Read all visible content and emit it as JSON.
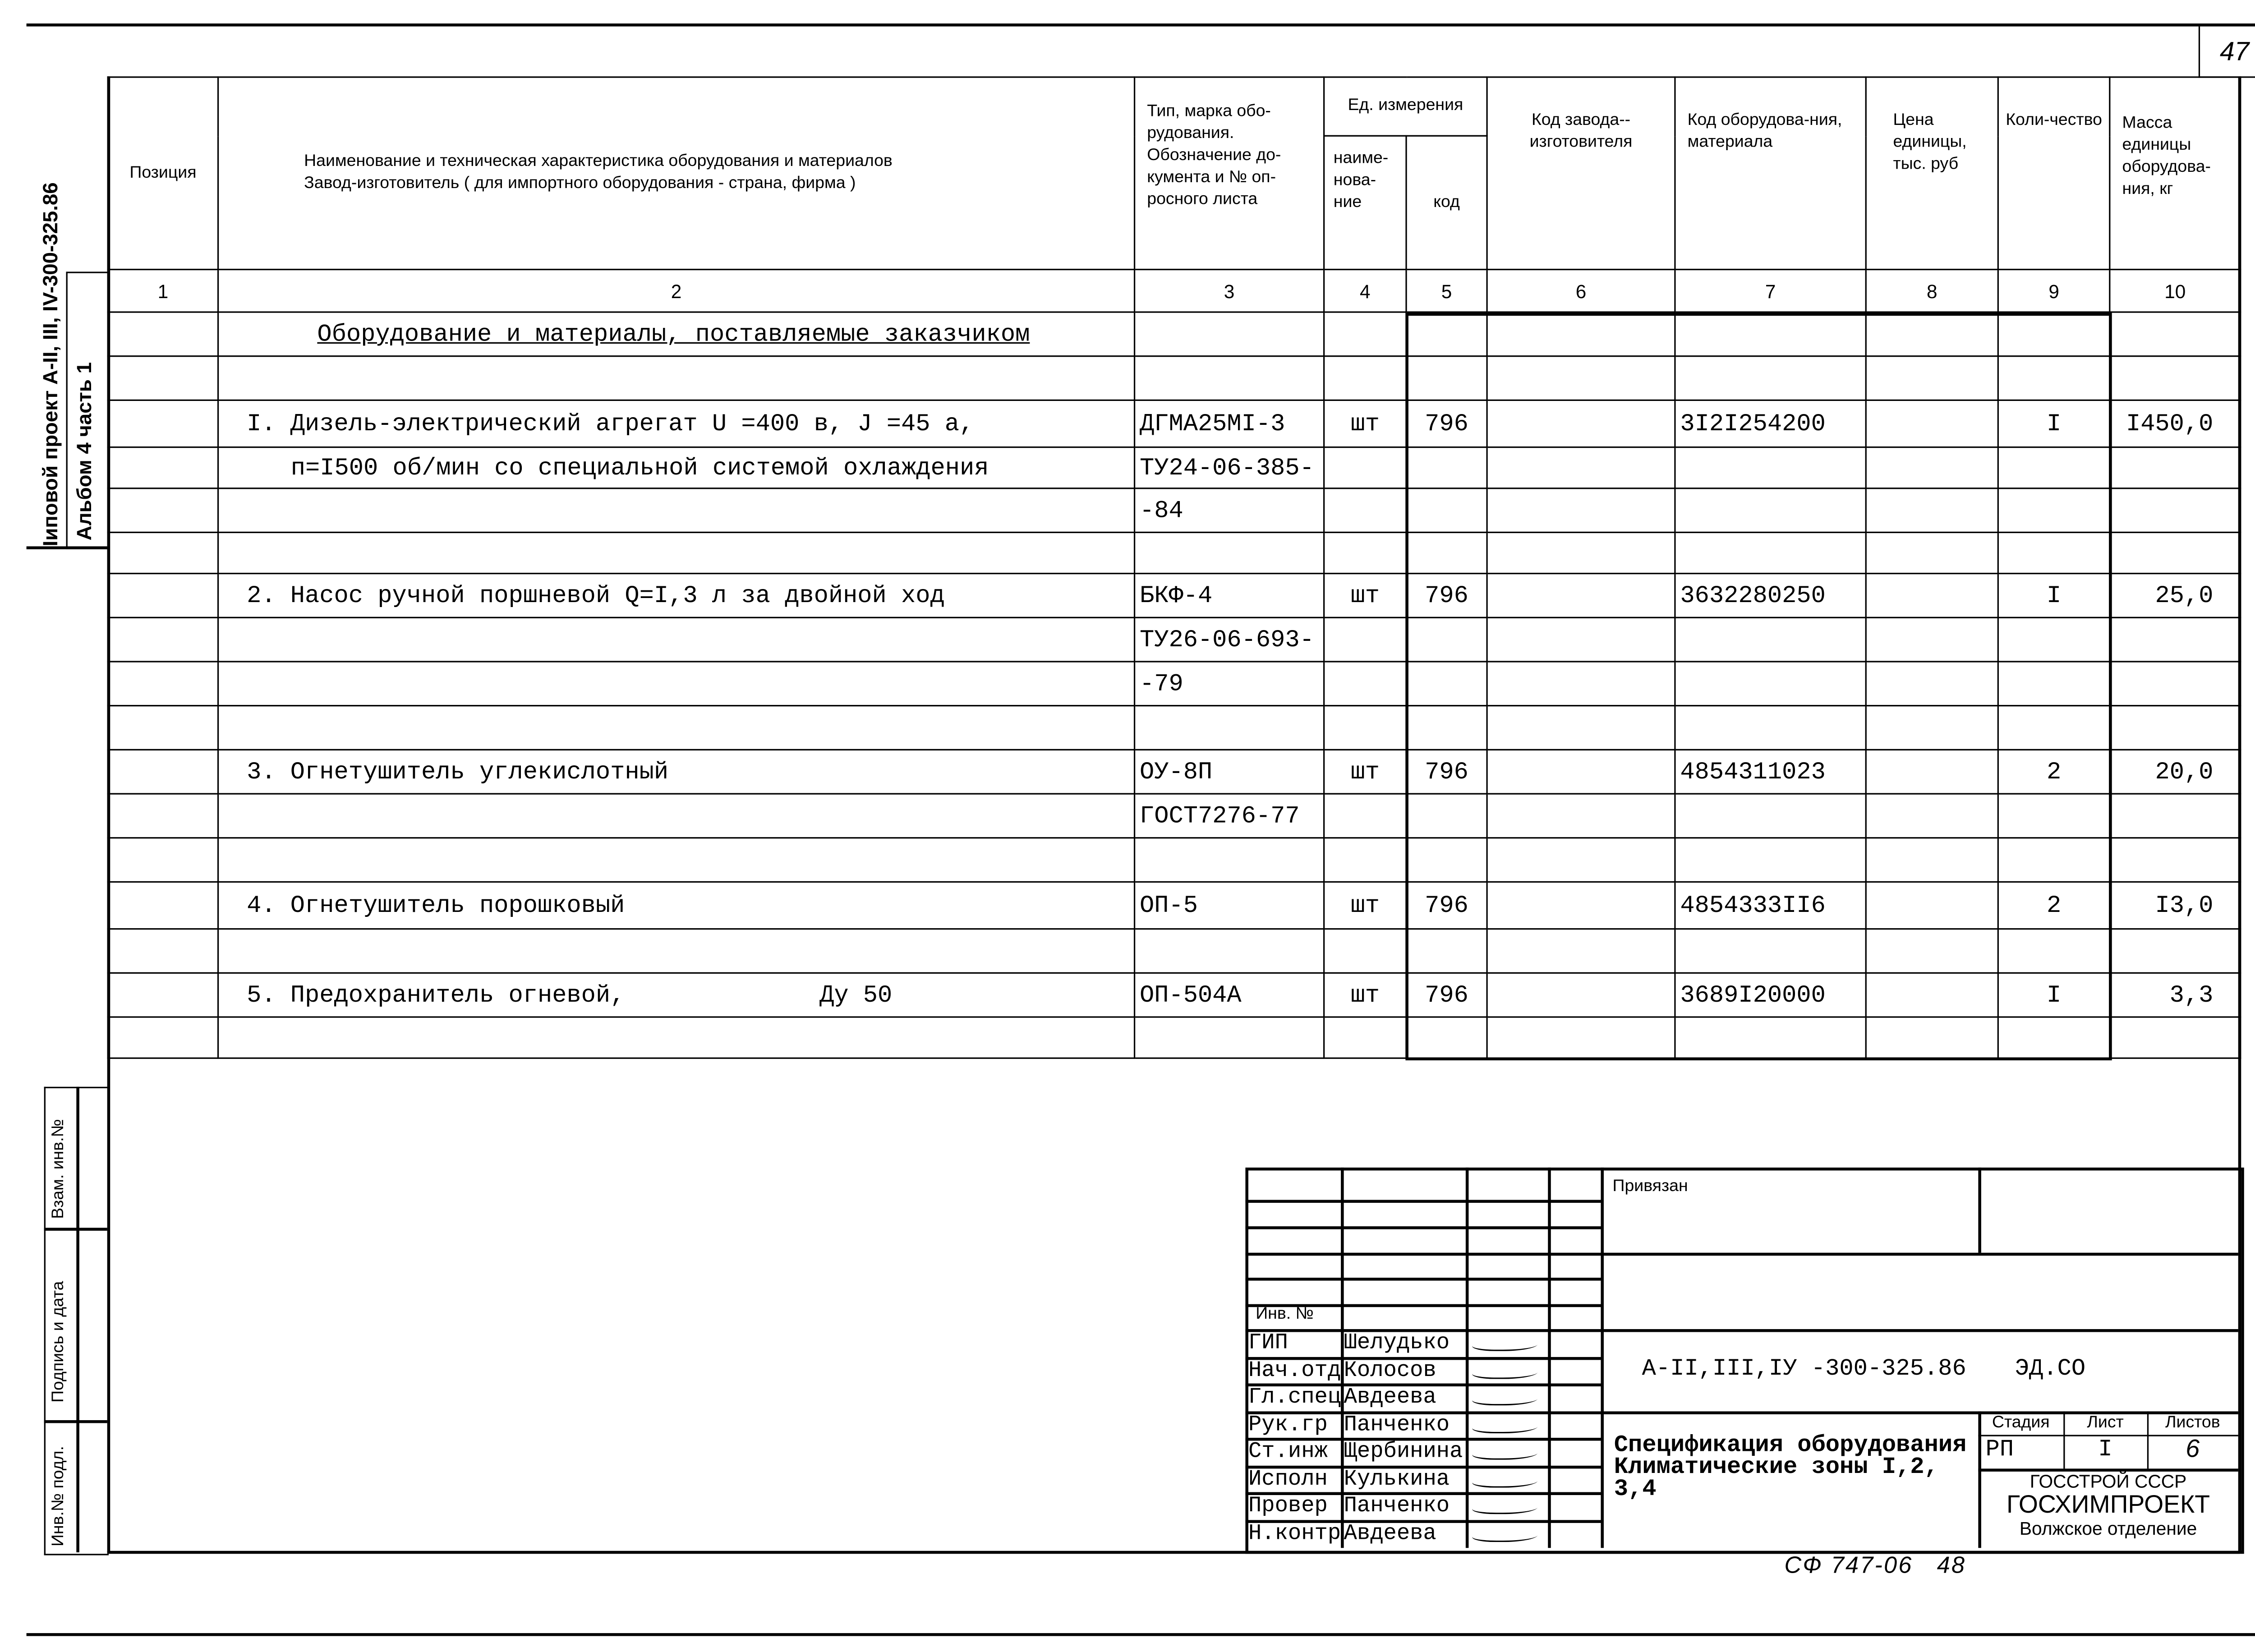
{
  "page_number": "47",
  "sidebar": {
    "project": "Iиповой проект А-II, III, IV-300-325.86",
    "album": "Альбом  4  часть  1",
    "stamp_labels": [
      "Взам. инв.№",
      "Подпись и дата",
      "Инв.№ подл."
    ]
  },
  "table": {
    "headers": {
      "position": "Позиция",
      "name": "Наименование и техническая характеристика оборудования и материалов\nЗавод-изготовитель ( для импортного оборудования - страна, фирма )",
      "type": "Тип, марка обо-рудования. Обозначение до-кумента и № оп-росного листа",
      "unit": "Ед. измерения",
      "unit_name": "наиме-нова-ние",
      "unit_code": "код",
      "factory_code": "Код завода--изготовителя",
      "equipment_code": "Код оборудова-ния, материала",
      "price": "Цена единицы, тыс. руб",
      "quantity": "Коли-чество",
      "mass": "Масса единицы оборудова-ния, кг"
    },
    "column_numbers": [
      "1",
      "2",
      "3",
      "4",
      "5",
      "6",
      "7",
      "8",
      "9",
      "10"
    ],
    "section_title": "Оборудование и материалы, поставляемые заказчиком",
    "rows": [
      {
        "name": "",
        "type": "",
        "unit": "",
        "code": "",
        "eq_code": "",
        "qty": "",
        "mass": ""
      },
      {
        "name": "I. Дизель-электрический агрегат U =400 в, J =45 а,",
        "type": "ДГМА25МI-3",
        "unit": "шт",
        "code": "796",
        "eq_code": "3I2I254200",
        "qty": "I",
        "mass": "I450,0"
      },
      {
        "name2": "п=I500 об/мин со специальной системой охлаждения",
        "type": "ТУ24-06-385-"
      },
      {
        "type": "-84"
      },
      {},
      {
        "name": "2. Насос ручной поршневой Q=I,3 л за двойной ход",
        "type": "БКФ-4",
        "unit": "шт",
        "code": "796",
        "eq_code": "3632280250",
        "qty": "I",
        "mass": "25,0"
      },
      {
        "type": "ТУ26-06-693-"
      },
      {
        "type": "-79"
      },
      {},
      {
        "name": "3. Огнетушитель углекислотный",
        "type": "ОУ-8П",
        "unit": "шт",
        "code": "796",
        "eq_code": "4854311023",
        "qty": "2",
        "mass": "20,0"
      },
      {
        "type": "ГОСТ7276-77"
      },
      {},
      {
        "name": "4. Огнетушитель порошковый",
        "type": "ОП-5",
        "unit": "шт",
        "code": "796",
        "eq_code": "4854333II6",
        "qty": "2",
        "mass": "I3,0"
      },
      {},
      {
        "name": "5. Предохранитель огневой,",
        "name_extra": "Ду 50",
        "type": "ОП-504А",
        "unit": "шт",
        "code": "796",
        "eq_code": "3689I20000",
        "qty": "I",
        "mass": "3,3"
      },
      {}
    ]
  },
  "title_block": {
    "bound_label": "Привязан",
    "inv_label": "Инв. №",
    "staff": [
      {
        "role": "ГИП",
        "name": "Шелудько"
      },
      {
        "role": "Нач.отд",
        "name": "Колосов"
      },
      {
        "role": "Гл.спец",
        "name": "Авдеева"
      },
      {
        "role": "Рук.гр",
        "name": "Панченко"
      },
      {
        "role": "Ст.инж",
        "name": "Щербинина"
      },
      {
        "role": "Исполн",
        "name": "Кулькина"
      },
      {
        "role": "Провер",
        "name": "Панченко"
      },
      {
        "role": "Н.контр",
        "name": "Авдеева"
      }
    ],
    "doc_code": "А-II,III,IУ -300-325.86",
    "doc_suffix": "ЭД.СО",
    "title": "Спецификация оборудования\nКлиматические зоны I,2,\n3,4",
    "stage_label": "Стадия",
    "sheet_label": "Лист",
    "sheets_label": "Листов",
    "stage": "РП",
    "sheet": "I",
    "sheets": "6",
    "org1": "ГОССТРОЙ СССР",
    "org2": "ГОСХИМПРОЕКТ",
    "org3": "Волжское отделение"
  },
  "footer_note": "СФ 747-06   48"
}
